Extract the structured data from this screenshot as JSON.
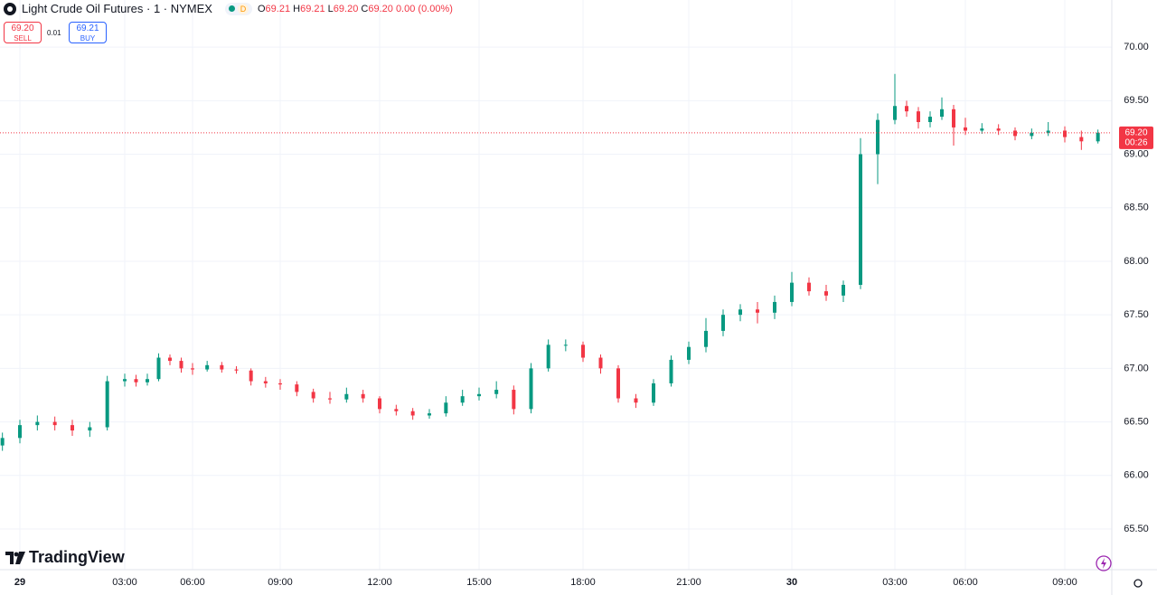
{
  "header": {
    "title": "Light Crude Oil Futures · 1 · NYMEX",
    "interval_badge": "D",
    "ohlc": {
      "o_label": "O",
      "o": "69.21",
      "h_label": "H",
      "h": "69.21",
      "l_label": "L",
      "l": "69.20",
      "c_label": "C",
      "c": "69.20",
      "change": "0.00 (0.00%)"
    }
  },
  "trade": {
    "sell_price": "69.20",
    "sell_label": "SELL",
    "spread": "0.01",
    "buy_price": "69.21",
    "buy_label": "BUY"
  },
  "logo": "TradingView",
  "chart_data": {
    "type": "candlestick",
    "up_color": "#089981",
    "down_color": "#f23645",
    "grid": true,
    "x": [
      -0.5,
      0,
      0.5,
      1,
      1.5,
      2,
      2.5,
      3,
      3.5,
      4,
      4.5,
      5,
      5.5,
      6,
      6.5,
      7,
      7.5,
      8,
      8.5,
      9,
      9.5,
      10,
      10.5,
      11,
      11.5,
      12,
      12.5,
      13,
      13.5,
      14,
      14.5,
      15,
      15.5,
      16,
      16.5,
      17,
      17.5,
      18,
      18.5,
      19,
      19.5,
      20,
      20.5,
      21,
      21.5,
      22,
      22.5,
      23,
      23.5,
      24,
      24.5,
      25,
      25.5,
      26,
      26.5,
      27,
      27.5,
      28,
      28.5,
      29,
      29.5,
      30,
      30.5,
      31,
      31.5,
      32,
      32.5,
      33,
      33.5,
      34
    ],
    "open": [
      66.28,
      66.35,
      66.47,
      66.5,
      66.47,
      66.42,
      66.45,
      66.88,
      66.9,
      66.87,
      66.9,
      67.1,
      67.07,
      67.0,
      66.99,
      67.03,
      66.99,
      66.98,
      66.88,
      66.86,
      66.85,
      66.78,
      66.72,
      66.71,
      66.76,
      66.72,
      66.62,
      66.6,
      66.56,
      66.58,
      66.68,
      66.74,
      66.76,
      66.8,
      66.62,
      67.0,
      67.22,
      67.22,
      67.1,
      67.0,
      66.72,
      66.68,
      66.86,
      67.08,
      67.2,
      67.35,
      67.5,
      67.55,
      67.52,
      67.62,
      67.8,
      67.72,
      67.68,
      67.78,
      69.0,
      69.32,
      69.45,
      69.4,
      69.3,
      69.35,
      69.42,
      69.25,
      69.22,
      69.24,
      69.22,
      69.17,
      69.2,
      69.22,
      69.16,
      69.12
    ],
    "high": [
      66.4,
      66.52,
      66.56,
      66.55,
      66.52,
      66.5,
      66.93,
      66.95,
      66.94,
      66.95,
      67.14,
      67.13,
      67.1,
      67.05,
      67.07,
      67.06,
      67.02,
      67.0,
      66.92,
      66.9,
      66.88,
      66.81,
      66.78,
      66.82,
      66.8,
      66.74,
      66.66,
      66.63,
      66.62,
      66.74,
      66.8,
      66.82,
      66.88,
      66.84,
      67.05,
      67.27,
      67.27,
      67.25,
      67.13,
      67.03,
      66.76,
      66.9,
      67.12,
      67.25,
      67.47,
      67.55,
      67.6,
      67.62,
      67.68,
      67.9,
      67.85,
      67.78,
      67.82,
      69.15,
      69.38,
      69.75,
      69.5,
      69.44,
      69.4,
      69.53,
      69.46,
      69.34,
      69.29,
      69.28,
      69.25,
      69.24,
      69.3,
      69.26,
      69.22,
      69.23
    ],
    "low": [
      66.23,
      66.3,
      66.42,
      66.42,
      66.37,
      66.36,
      66.42,
      66.83,
      66.83,
      66.84,
      66.88,
      67.03,
      66.96,
      66.94,
      66.97,
      66.96,
      66.95,
      66.84,
      66.82,
      66.8,
      66.74,
      66.68,
      66.67,
      66.68,
      66.68,
      66.58,
      66.56,
      66.52,
      66.53,
      66.55,
      66.65,
      66.7,
      66.72,
      66.57,
      66.58,
      66.97,
      67.16,
      67.06,
      66.95,
      66.68,
      66.63,
      66.65,
      66.83,
      67.04,
      67.15,
      67.3,
      67.44,
      67.42,
      67.46,
      67.58,
      67.68,
      67.63,
      67.62,
      67.74,
      68.72,
      69.28,
      69.35,
      69.24,
      69.25,
      69.32,
      69.08,
      69.18,
      69.19,
      69.18,
      69.13,
      69.14,
      69.17,
      69.11,
      69.04,
      69.1
    ],
    "close": [
      66.35,
      66.47,
      66.5,
      66.47,
      66.42,
      66.45,
      66.88,
      66.9,
      66.87,
      66.9,
      67.1,
      67.07,
      67.0,
      66.99,
      67.03,
      66.99,
      66.98,
      66.88,
      66.86,
      66.85,
      66.78,
      66.72,
      66.71,
      66.76,
      66.72,
      66.62,
      66.6,
      66.56,
      66.58,
      66.68,
      66.74,
      66.76,
      66.8,
      66.62,
      67.0,
      67.22,
      67.22,
      67.1,
      67.0,
      66.72,
      66.68,
      66.86,
      67.08,
      67.2,
      67.35,
      67.5,
      67.55,
      67.52,
      67.62,
      67.8,
      67.72,
      67.68,
      67.78,
      69.0,
      69.32,
      69.45,
      69.4,
      69.3,
      69.35,
      69.42,
      69.25,
      69.22,
      69.24,
      69.22,
      69.17,
      69.2,
      69.22,
      69.16,
      69.12,
      69.2
    ],
    "xticks": [
      {
        "value": 0,
        "label": "29"
      },
      {
        "value": 3,
        "label": "03:00"
      },
      {
        "value": 6,
        "label": "06:00"
      },
      {
        "value": 9,
        "label": "09:00"
      },
      {
        "value": 12,
        "label": "12:00"
      },
      {
        "value": 15,
        "label": "15:00"
      },
      {
        "value": 18,
        "label": "18:00"
      },
      {
        "value": 21,
        "label": "21:00"
      },
      {
        "value": 24,
        "label": "30"
      },
      {
        "value": 27,
        "label": "03:00"
      },
      {
        "value": 30,
        "label": "06:00"
      },
      {
        "value": 33,
        "label": "09:00"
      }
    ],
    "ylim": [
      65.12,
      70.44
    ],
    "yticks": [
      {
        "value": 65.5,
        "label": "65.50"
      },
      {
        "value": 66,
        "label": "66.00"
      },
      {
        "value": 66.5,
        "label": "66.50"
      },
      {
        "value": 67,
        "label": "67.00"
      },
      {
        "value": 67.5,
        "label": "67.50"
      },
      {
        "value": 68,
        "label": "68.00"
      },
      {
        "value": 68.5,
        "label": "68.50"
      },
      {
        "value": 69,
        "label": "69.00"
      },
      {
        "value": 69.5,
        "label": "69.50"
      },
      {
        "value": 70,
        "label": "70.00"
      }
    ],
    "current_price": {
      "value": 69.2,
      "label": "69.20"
    },
    "countdown": "00:26"
  }
}
